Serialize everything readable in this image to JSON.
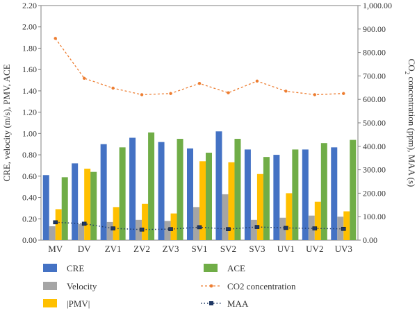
{
  "chart_data": {
    "type": "bar",
    "categories": [
      "MV",
      "DV",
      "ZV1",
      "ZV2",
      "ZV3",
      "SV1",
      "SV2",
      "SV3",
      "UV1",
      "UV2",
      "UV3"
    ],
    "series": [
      {
        "name": "CRE",
        "type": "bar",
        "axis": "left",
        "color": "#4472C4",
        "values": [
          0.61,
          0.72,
          0.9,
          0.96,
          0.92,
          0.86,
          1.02,
          0.85,
          0.8,
          0.85,
          0.87
        ]
      },
      {
        "name": "Velocity",
        "type": "bar",
        "axis": "left",
        "color": "#A5A5A5",
        "values": [
          0.13,
          0.15,
          0.17,
          0.19,
          0.18,
          0.31,
          0.43,
          0.19,
          0.21,
          0.23,
          0.22
        ]
      },
      {
        "name": "|PMV|",
        "type": "bar",
        "axis": "left",
        "color": "#FFC000",
        "values": [
          0.29,
          0.67,
          0.31,
          0.34,
          0.25,
          0.74,
          0.73,
          0.62,
          0.44,
          0.36,
          0.27
        ]
      },
      {
        "name": "ACE",
        "type": "bar",
        "axis": "left",
        "color": "#70AD47",
        "values": [
          0.59,
          0.64,
          0.87,
          1.01,
          0.95,
          0.82,
          0.95,
          0.78,
          0.85,
          0.91,
          0.94
        ]
      },
      {
        "name": "CO2 concentration",
        "type": "line",
        "axis": "right",
        "color": "#ED7D31",
        "values": [
          860,
          690,
          648,
          620,
          625,
          668,
          628,
          678,
          635,
          620,
          625
        ]
      },
      {
        "name": "MAA",
        "type": "line",
        "axis": "right",
        "color": "#1F3864",
        "values": [
          76,
          70,
          50,
          45,
          47,
          55,
          47,
          56,
          52,
          50,
          48
        ]
      }
    ],
    "ylabel": "CRE, velocity (m/s), PMV, ACE",
    "y2label_parts": [
      "CO",
      "2",
      " concentration (ppm), MAA (s)"
    ],
    "ylim": [
      0,
      2.2
    ],
    "y_ticks": [
      "0.00",
      "0.20",
      "0.40",
      "0.60",
      "0.80",
      "1.00",
      "1.20",
      "1.40",
      "1.60",
      "1.80",
      "2.00",
      "2.20"
    ],
    "y2lim": [
      0,
      1000
    ],
    "y2_ticks": [
      "0.00",
      "100.00",
      "200.00",
      "300.00",
      "400.00",
      "500.00",
      "600.00",
      "700.00",
      "800.00",
      "900.00",
      "1,000.00"
    ],
    "grid": false,
    "legend_position": "bottom"
  },
  "legend_items": [
    {
      "label": "CRE",
      "kind": "bar",
      "color": "#4472C4"
    },
    {
      "label": "ACE",
      "kind": "bar",
      "color": "#70AD47"
    },
    {
      "label": "Velocity",
      "kind": "bar",
      "color": "#A5A5A5"
    },
    {
      "label": "CO2 concentration",
      "kind": "dot-line",
      "color": "#ED7D31"
    },
    {
      "label": "|PMV|",
      "kind": "bar",
      "color": "#FFC000"
    },
    {
      "label": "MAA",
      "kind": "square-line",
      "color": "#1F3864"
    }
  ]
}
